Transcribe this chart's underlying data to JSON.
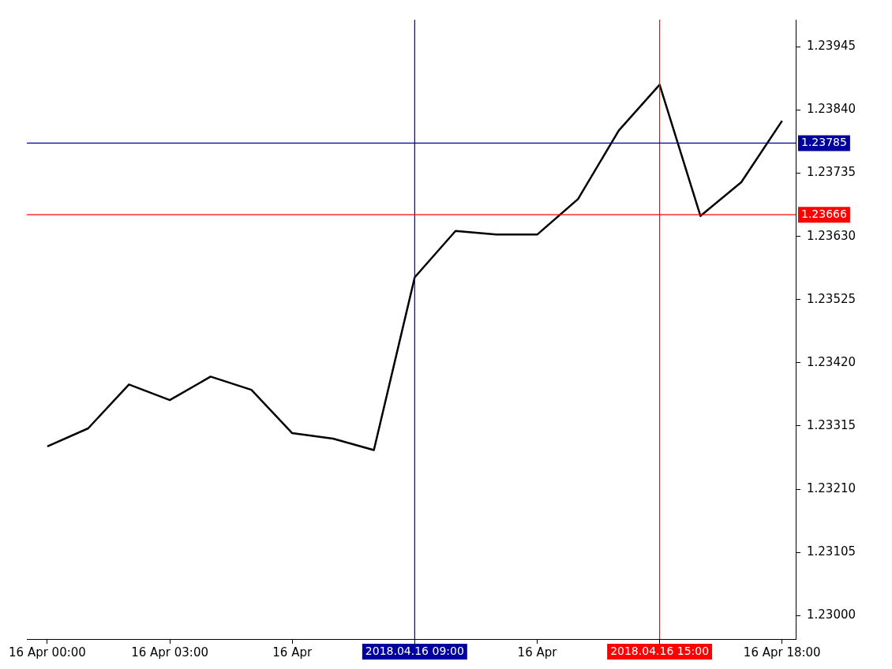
{
  "chart_data": {
    "type": "line",
    "x": [
      "2018-04-16T00:00",
      "2018-04-16T01:00",
      "2018-04-16T02:00",
      "2018-04-16T03:00",
      "2018-04-16T04:00",
      "2018-04-16T05:00",
      "2018-04-16T06:00",
      "2018-04-16T07:00",
      "2018-04-16T08:00",
      "2018-04-16T09:00",
      "2018-04-16T10:00",
      "2018-04-16T11:00",
      "2018-04-16T12:00",
      "2018-04-16T13:00",
      "2018-04-16T14:00",
      "2018-04-16T15:00",
      "2018-04-16T16:00",
      "2018-04-16T17:00",
      "2018-04-16T18:00"
    ],
    "series": [
      {
        "color": "#000000",
        "values": [
          1.23281,
          1.23311,
          1.23384,
          1.23358,
          1.23397,
          1.23375,
          1.23303,
          1.23294,
          1.23275,
          1.23562,
          1.23639,
          1.23633,
          1.23633,
          1.23692,
          1.23806,
          1.23882,
          1.23664,
          1.2372,
          1.23822
        ]
      }
    ],
    "xlim": [
      "2018-04-15T23:30",
      "2018-04-16T18:20"
    ],
    "xticks": [
      {
        "value": "2018-04-16T00:00",
        "label": "16 Apr 00:00"
      },
      {
        "value": "2018-04-16T03:00",
        "label": "16 Apr 03:00"
      },
      {
        "value": "2018-04-16T06:00",
        "label": "16 Apr"
      },
      {
        "value": "2018-04-16T09:00",
        "label": null
      },
      {
        "value": "2018-04-16T12:00",
        "label": "16 Apr"
      },
      {
        "value": "2018-04-16T15:00",
        "label": null
      },
      {
        "value": "2018-04-16T18:00",
        "label": "16 Apr 18:00"
      }
    ],
    "ylim": [
      1.22961,
      1.2399
    ],
    "yticks": [
      {
        "value": 1.23,
        "label": "1.23000"
      },
      1.23105,
      {
        "value": 1.2321,
        "label": "1.23210"
      },
      1.23315,
      {
        "value": 1.2342,
        "label": "1.23420"
      },
      1.23525,
      {
        "value": 1.2363,
        "label": "1.23630"
      },
      1.23735,
      {
        "value": 1.2384,
        "label": "1.23840"
      },
      1.23945
    ],
    "ref_lines": [
      {
        "axis": "x",
        "value": "2018-04-16T09:00",
        "label": "2018.04.16 09:00",
        "color": "#00009c"
      },
      {
        "axis": "x",
        "value": "2018-04-16T15:00",
        "label": "2018.04.16 15:00",
        "color": "#ff0000"
      },
      {
        "axis": "y",
        "value": 1.23785,
        "label": "1.23785",
        "color": "#00009c"
      },
      {
        "axis": "y",
        "value": 1.23666,
        "label": "1.23666",
        "color": "#ff0000"
      }
    ],
    "grid": false,
    "legend": false,
    "marker": "none",
    "line_style": "solid"
  }
}
